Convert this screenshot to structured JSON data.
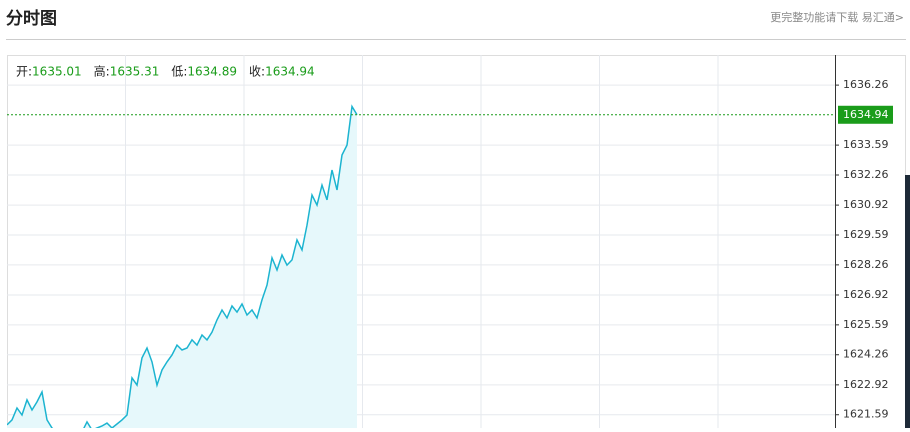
{
  "header": {
    "title": "分时图",
    "link": "更完整功能请下载 易汇通>"
  },
  "chart_data": {
    "type": "line",
    "ohlc": [
      {
        "label": "开:",
        "value": 1635.01
      },
      {
        "label": "高:",
        "value": 1635.31
      },
      {
        "label": "低:",
        "value": 1634.89
      },
      {
        "label": "收:",
        "value": 1634.94
      }
    ],
    "values": [
      1621.14,
      1621.36,
      1621.89,
      1621.58,
      1622.25,
      1621.8,
      1622.16,
      1622.6,
      1621.36,
      1621.0,
      1620.82,
      1620.69,
      1620.82,
      1620.78,
      1620.91,
      1620.82,
      1621.27,
      1620.91,
      1621.0,
      1621.09,
      1621.22,
      1621.0,
      1621.18,
      1621.36,
      1621.58,
      1623.23,
      1622.91,
      1624.12,
      1624.56,
      1623.94,
      1622.91,
      1623.58,
      1623.94,
      1624.25,
      1624.69,
      1624.47,
      1624.56,
      1624.92,
      1624.69,
      1625.14,
      1624.92,
      1625.27,
      1625.81,
      1626.25,
      1625.9,
      1626.43,
      1626.16,
      1626.52,
      1626.03,
      1626.25,
      1625.9,
      1626.7,
      1627.36,
      1628.57,
      1628.03,
      1628.7,
      1628.25,
      1628.48,
      1629.37,
      1628.92,
      1630.03,
      1631.37,
      1630.92,
      1631.81,
      1631.15,
      1632.48,
      1631.59,
      1633.15,
      1633.59,
      1635.31,
      1634.94
    ],
    "color": "#1cb4d0",
    "fill": "#e6f8fb",
    "last": {
      "value": 1634.94,
      "color": "#1a9c1a"
    },
    "ylim": [
      1621.0,
      1637.6
    ],
    "yticks": [
      1636.26,
      1633.59,
      1632.26,
      1630.92,
      1629.59,
      1628.26,
      1626.92,
      1625.59,
      1624.26,
      1622.92,
      1621.59
    ],
    "grid": true
  }
}
